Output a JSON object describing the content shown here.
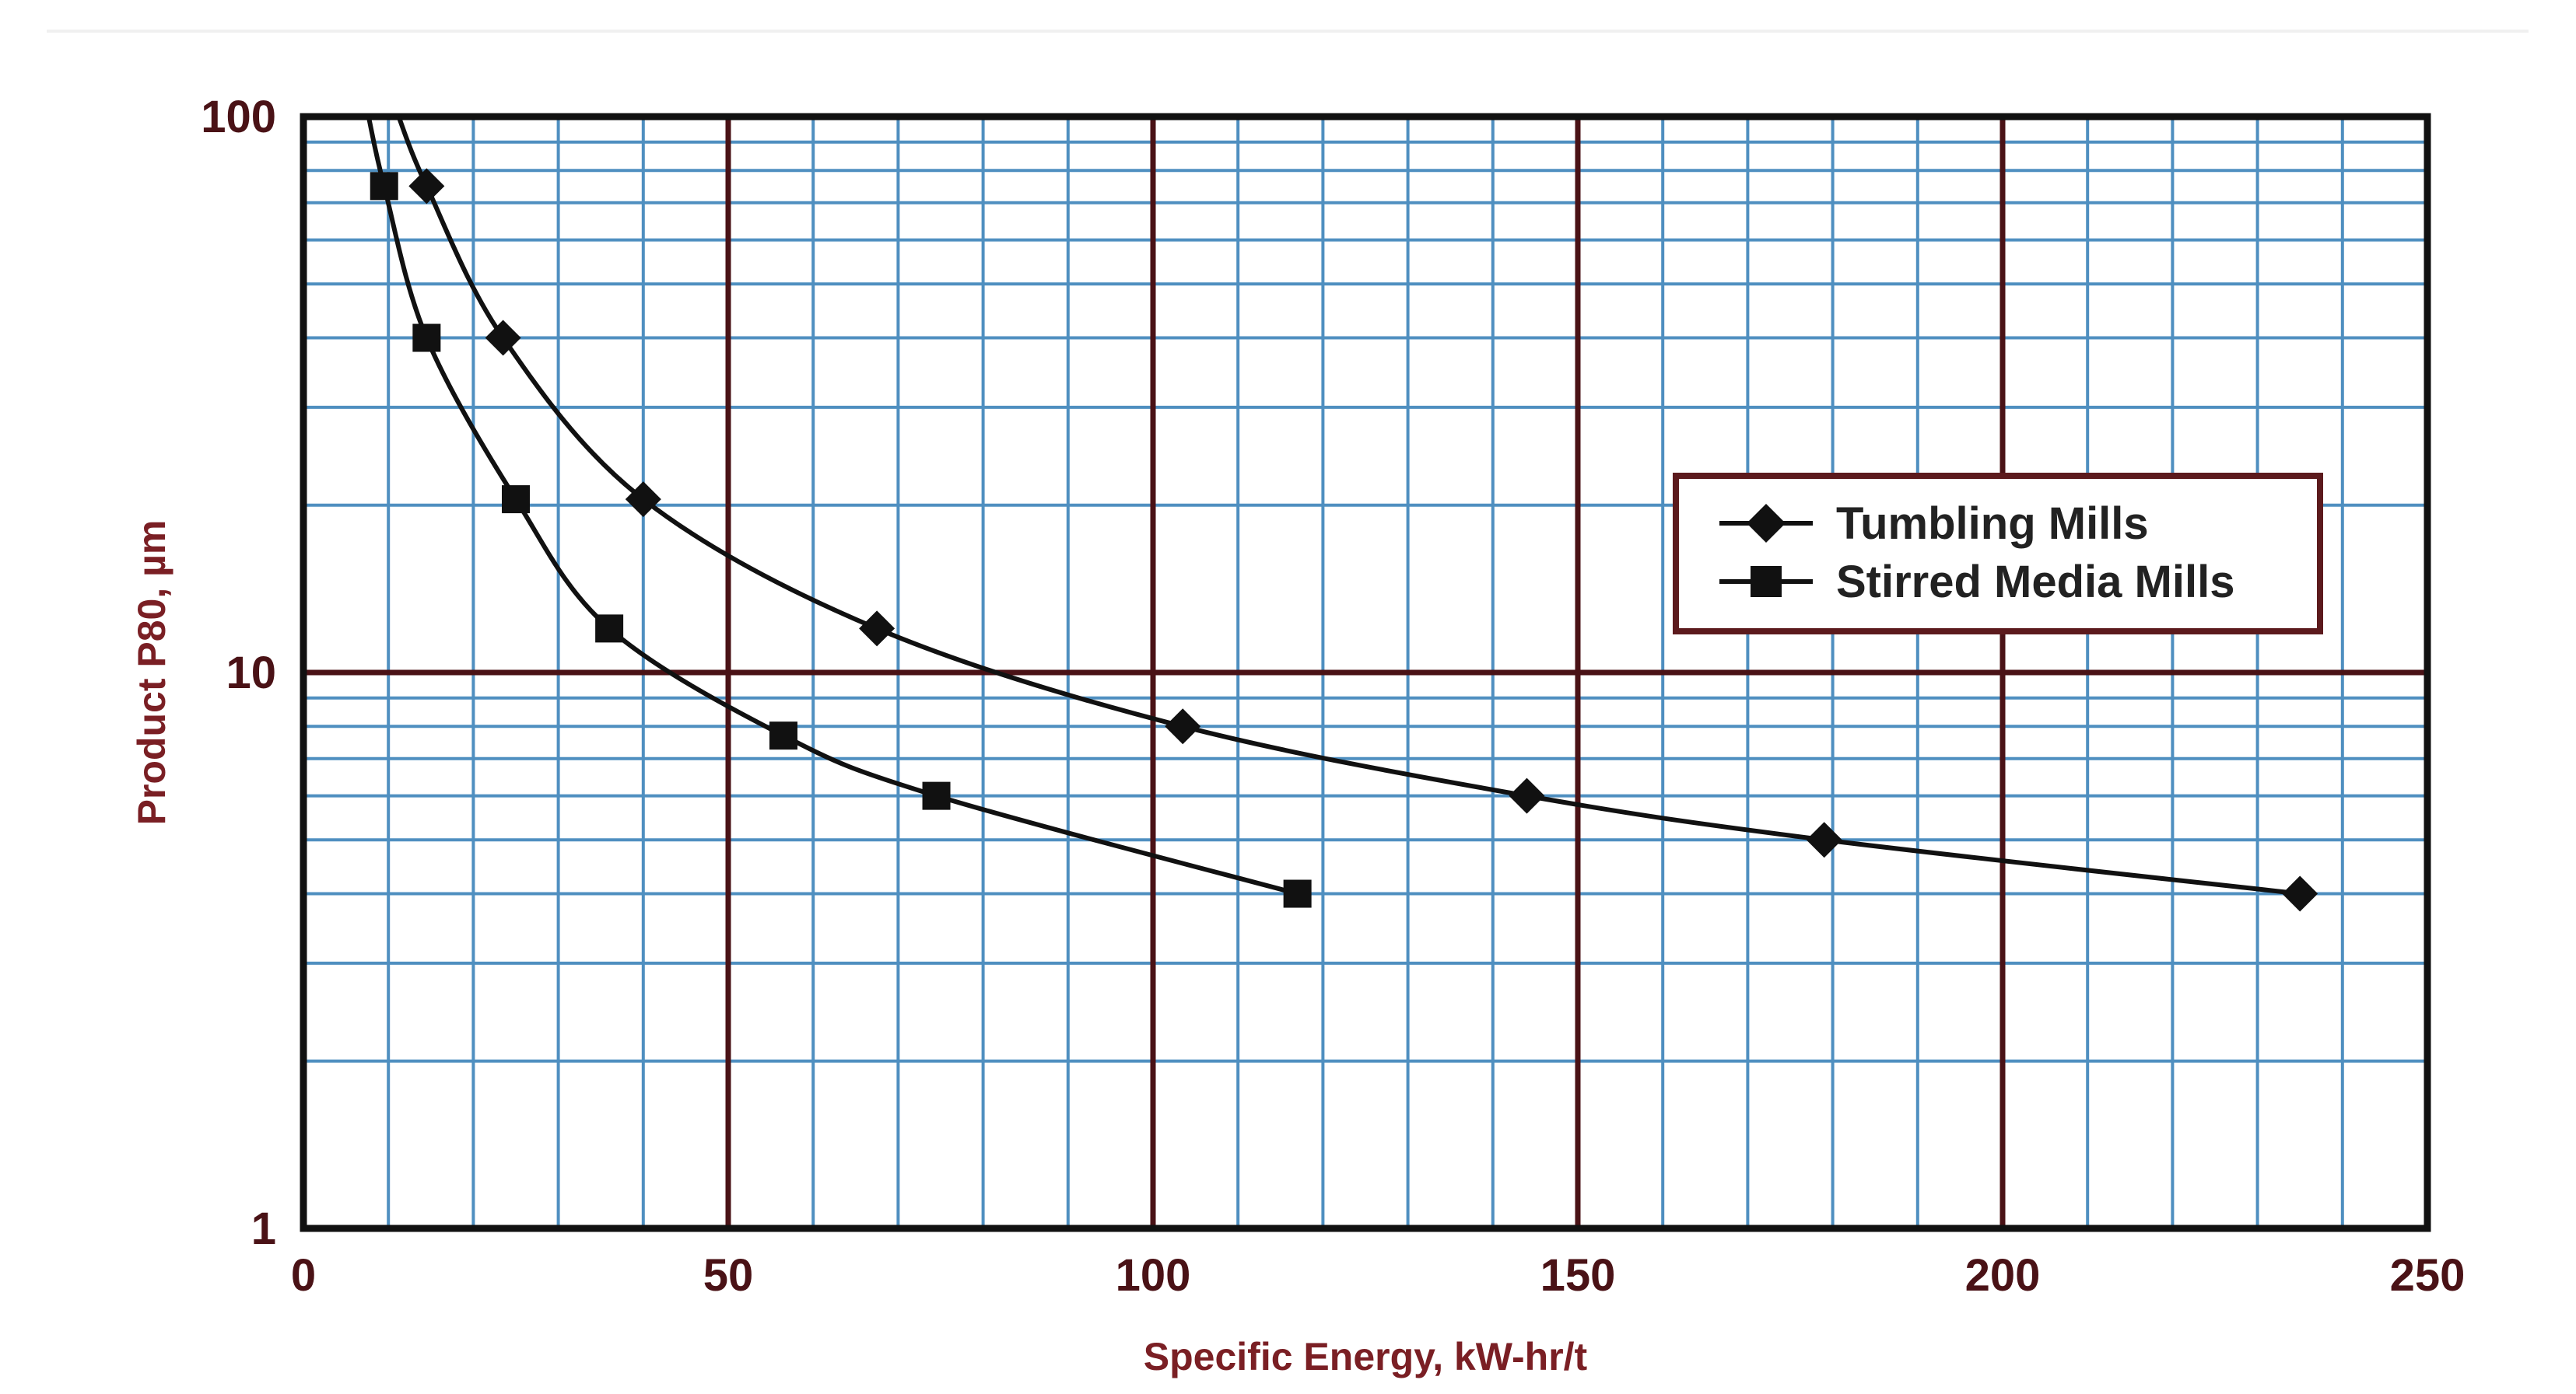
{
  "chart_data": {
    "type": "line",
    "title": "",
    "xlabel": "Specific Energy, kW-hr/t",
    "ylabel": "Product P80, µm",
    "xlim": [
      0,
      250
    ],
    "ylim": [
      1,
      100
    ],
    "yscale": "log",
    "x_ticks": [
      "0",
      "50",
      "100",
      "150",
      "200",
      "250"
    ],
    "y_ticks": [
      "1",
      "10",
      "100"
    ],
    "grid": true,
    "legend_position": "right",
    "colors": {
      "minor_grid": "#4f8fc0",
      "major_grid": "#4a1216",
      "frame": "#111111",
      "series": "#111111",
      "axis_label": "#7a1f24"
    },
    "series": [
      {
        "name": "Tumbling Mills",
        "marker": "diamond",
        "x": [
          14.5,
          23.5,
          40,
          67.5,
          103.5,
          144,
          179,
          235
        ],
        "y": [
          75,
          40,
          20.5,
          12,
          8,
          6,
          5,
          4
        ]
      },
      {
        "name": "Stirred Media Mills",
        "marker": "square",
        "x": [
          9.5,
          14.5,
          25,
          36,
          56.5,
          74.5,
          117
        ],
        "y": [
          75,
          40,
          20.5,
          12,
          7.7,
          6,
          4
        ]
      }
    ]
  }
}
